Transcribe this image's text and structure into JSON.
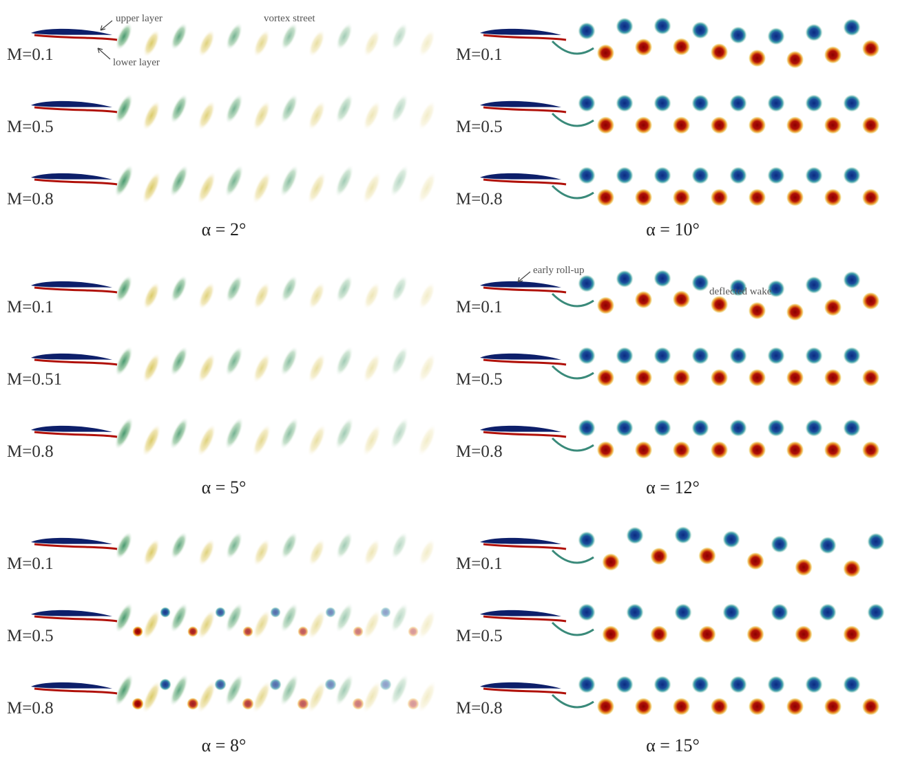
{
  "figures": [
    {
      "caption": "α = 2°",
      "rows": [
        "M=0.1",
        "M=0.5",
        "M=0.8"
      ]
    },
    {
      "caption": "α = 10°",
      "rows": [
        "M=0.1",
        "M=0.5",
        "M=0.8"
      ]
    },
    {
      "caption": "α = 5°",
      "rows": [
        "M=0.1",
        "M=0.51",
        "M=0.8"
      ]
    },
    {
      "caption": "α = 12°",
      "rows": [
        "M=0.1",
        "M=0.5",
        "M=0.8"
      ]
    },
    {
      "caption": "α = 8°",
      "rows": [
        "M=0.1",
        "M=0.5",
        "M=0.8"
      ]
    },
    {
      "caption": "α = 15°",
      "rows": [
        "M=0.1",
        "M=0.5",
        "M=0.8"
      ]
    }
  ],
  "annotations": {
    "upper_layer": "upper layer",
    "lower_layer": "lower layer",
    "vortex_street": "vortex street",
    "early_roll_up": "early roll-up",
    "deflected_wake": "deflected wake"
  }
}
